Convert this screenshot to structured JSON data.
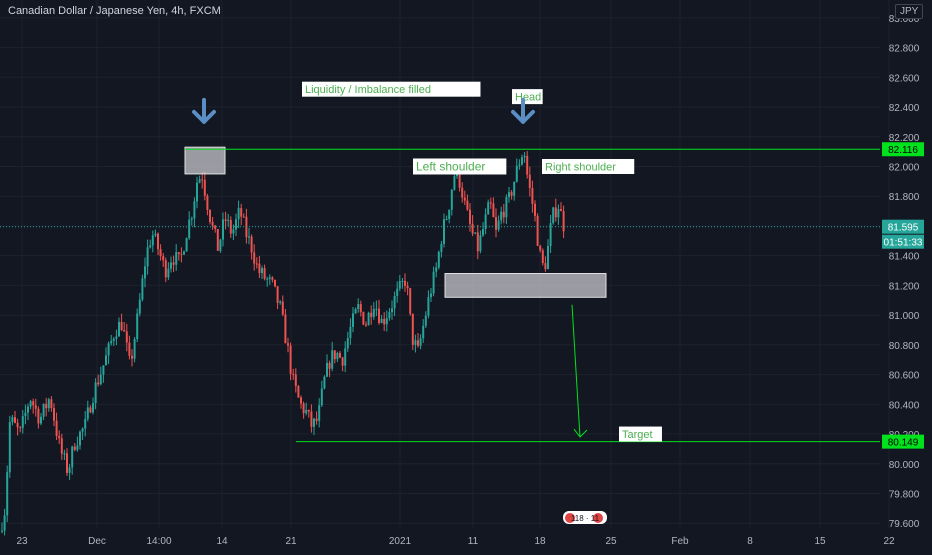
{
  "header": {
    "title": "Canadian Dollar / Japanese Yen, 4h, FXCM",
    "currency": "JPY"
  },
  "colors": {
    "background": "#131722",
    "grid": "#1e222d",
    "up": "#26a69a",
    "down": "#ef5350",
    "line": "#00e21c",
    "arrow": "#5b8ec4",
    "axis_text": "#b2b5be",
    "label_text": "#4caf50",
    "label_bg": "#ffffff"
  },
  "chart_data": {
    "type": "candlestick",
    "ylim": [
      79.42,
      83.12
    ],
    "y_ticks": [
      79.6,
      79.8,
      80.0,
      80.2,
      80.4,
      80.6,
      80.8,
      81.0,
      81.2,
      81.4,
      81.6,
      81.8,
      82.0,
      82.2,
      82.4,
      82.6,
      82.8,
      83.0
    ],
    "x_ticks": [
      "23",
      "Dec",
      "14:00",
      "14",
      "21",
      "2021",
      "11",
      "18",
      "25",
      "Feb",
      "8",
      "15",
      "22"
    ],
    "ohlc_path": [
      [
        0,
        79.55
      ],
      [
        5,
        79.7
      ],
      [
        10,
        80.3
      ],
      [
        20,
        80.2
      ],
      [
        30,
        80.45
      ],
      [
        40,
        80.3
      ],
      [
        50,
        80.45
      ],
      [
        60,
        80.1
      ],
      [
        68,
        79.95
      ],
      [
        75,
        80.15
      ],
      [
        85,
        80.25
      ],
      [
        92,
        80.45
      ],
      [
        100,
        80.6
      ],
      [
        108,
        80.75
      ],
      [
        115,
        80.9
      ],
      [
        122,
        80.95
      ],
      [
        130,
        80.65
      ],
      [
        138,
        81.0
      ],
      [
        146,
        81.4
      ],
      [
        152,
        81.55
      ],
      [
        158,
        81.45
      ],
      [
        165,
        81.3
      ],
      [
        172,
        81.4
      ],
      [
        180,
        81.35
      ],
      [
        186,
        81.55
      ],
      [
        192,
        81.7
      ],
      [
        197,
        81.9
      ],
      [
        202,
        81.95
      ],
      [
        206,
        81.8
      ],
      [
        212,
        81.6
      ],
      [
        218,
        81.45
      ],
      [
        225,
        81.65
      ],
      [
        232,
        81.55
      ],
      [
        240,
        81.7
      ],
      [
        246,
        81.55
      ],
      [
        252,
        81.45
      ],
      [
        258,
        81.3
      ],
      [
        265,
        81.25
      ],
      [
        272,
        81.2
      ],
      [
        280,
        81.05
      ],
      [
        287,
        80.8
      ],
      [
        293,
        80.55
      ],
      [
        300,
        80.4
      ],
      [
        306,
        80.35
      ],
      [
        312,
        80.25
      ],
      [
        318,
        80.3
      ],
      [
        324,
        80.55
      ],
      [
        330,
        80.7
      ],
      [
        336,
        80.75
      ],
      [
        342,
        80.7
      ],
      [
        350,
        80.9
      ],
      [
        358,
        81.05
      ],
      [
        366,
        80.95
      ],
      [
        374,
        81.1
      ],
      [
        382,
        80.95
      ],
      [
        390,
        81.05
      ],
      [
        398,
        81.15
      ],
      [
        406,
        81.25
      ],
      [
        412,
        80.85
      ],
      [
        418,
        80.75
      ],
      [
        424,
        80.95
      ],
      [
        430,
        81.15
      ],
      [
        436,
        81.3
      ],
      [
        442,
        81.55
      ],
      [
        448,
        81.7
      ],
      [
        454,
        81.95
      ],
      [
        460,
        81.9
      ],
      [
        466,
        81.7
      ],
      [
        472,
        81.55
      ],
      [
        478,
        81.45
      ],
      [
        484,
        81.6
      ],
      [
        490,
        81.75
      ],
      [
        496,
        81.55
      ],
      [
        502,
        81.7
      ],
      [
        508,
        81.75
      ],
      [
        514,
        81.9
      ],
      [
        520,
        82.05
      ],
      [
        524,
        82.12
      ],
      [
        528,
        81.9
      ],
      [
        534,
        81.7
      ],
      [
        540,
        81.4
      ],
      [
        544,
        81.3
      ],
      [
        548,
        81.45
      ],
      [
        552,
        81.65
      ],
      [
        558,
        81.75
      ],
      [
        564,
        81.6
      ]
    ],
    "levels": [
      {
        "name": "resistance",
        "value": 82.116,
        "label": "82.116",
        "x_from": 185
      },
      {
        "name": "target",
        "value": 80.149,
        "label": "80.149",
        "x_from": 296
      }
    ],
    "current_price": {
      "value": 81.595,
      "label": "81.595",
      "countdown": "01:51:33"
    },
    "zones": [
      {
        "name": "top-zone",
        "x1": 185,
        "x2": 225,
        "y1": 81.95,
        "y2": 82.13
      },
      {
        "name": "neckline-zone",
        "x1": 445,
        "x2": 606,
        "y1": 81.12,
        "y2": 81.28
      }
    ],
    "annotations": [
      {
        "name": "liquidity-label",
        "text": "Liquidity / Imbalance filled",
        "x": 302,
        "y": 82.52,
        "size": 11
      },
      {
        "name": "head-label",
        "text": "Head",
        "x": 512,
        "y": 82.47,
        "size": 11
      },
      {
        "name": "left-shoulder-label",
        "text": "Left shoulder",
        "x": 413,
        "y": 82.0,
        "size": 12
      },
      {
        "name": "right-shoulder-label",
        "text": "Right shoulder",
        "x": 542,
        "y": 82.0,
        "size": 11
      },
      {
        "name": "target-label",
        "text": "Target",
        "x": 619,
        "y": 80.2,
        "size": 11
      }
    ],
    "down_arrows": [
      {
        "name": "top-arrow",
        "x": 204,
        "y": 82.3
      },
      {
        "name": "head-arrow",
        "x": 523,
        "y": 82.3
      }
    ],
    "projection": {
      "x1": 572,
      "y1": 81.07,
      "x2": 580,
      "y2": 80.18
    },
    "events_badge": "118 · 11"
  }
}
